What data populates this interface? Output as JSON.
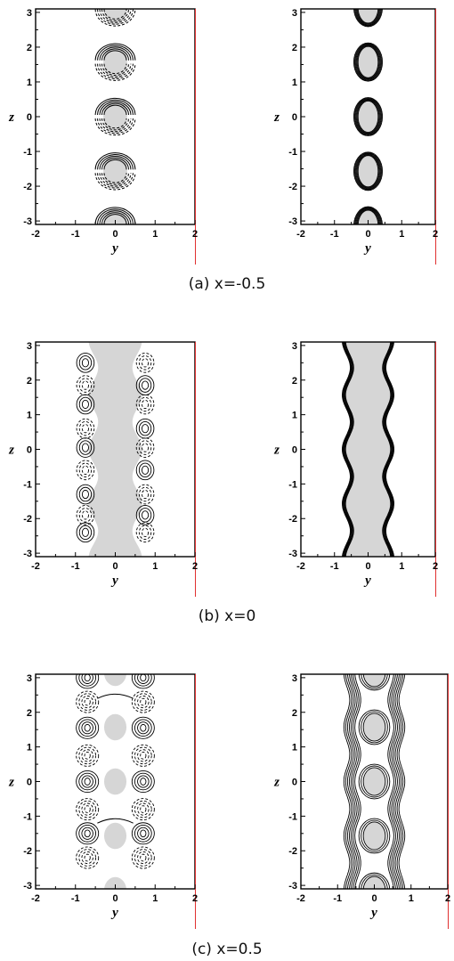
{
  "figure": {
    "rows": [
      {
        "caption": "(a)  x=-0.5",
        "panels": [
          {
            "ylabel": "z",
            "xlabel": "y",
            "xticks": [
              "-2",
              "-1",
              "0",
              "1",
              "2"
            ],
            "yticks": [
              "3",
              "2",
              "1",
              "0",
              "-1",
              "-2",
              "-3"
            ]
          },
          {
            "ylabel": "z",
            "xlabel": "y",
            "xticks": [
              "-2",
              "-1",
              "0",
              "1",
              "2"
            ],
            "yticks": [
              "3",
              "2",
              "1",
              "0",
              "-1",
              "-2",
              "-3"
            ]
          }
        ]
      },
      {
        "caption": "(b) x=0",
        "panels": [
          {
            "ylabel": "z",
            "xlabel": "y",
            "xticks": [
              "-2",
              "-1",
              "0",
              "1",
              "2"
            ],
            "yticks": [
              "3",
              "2",
              "1",
              "0",
              "-1",
              "-2",
              "-3"
            ]
          },
          {
            "ylabel": "z",
            "xlabel": "y",
            "xticks": [
              "-2",
              "-1",
              "0",
              "1",
              "2"
            ],
            "yticks": [
              "3",
              "2",
              "1",
              "0",
              "-1",
              "-2",
              "-3"
            ]
          }
        ]
      },
      {
        "caption": "(c) x=0.5",
        "panels": [
          {
            "ylabel": "z",
            "xlabel": "y",
            "xticks": [
              "-2",
              "-1",
              "0",
              "1",
              "2"
            ],
            "yticks": [
              "3",
              "2",
              "1",
              "0",
              "-1",
              "-2",
              "-3"
            ]
          },
          {
            "ylabel": "z",
            "xlabel": "y",
            "xticks": [
              "-2",
              "-1",
              "0",
              "1",
              "2"
            ],
            "yticks": [
              "3",
              "2",
              "1",
              "0",
              "-1",
              "-2",
              "-3"
            ]
          }
        ]
      }
    ],
    "axis_ranges": {
      "y": [
        -2,
        2
      ],
      "z": [
        -3.1,
        3.1
      ]
    },
    "colors": {
      "fill": "#d6d6d6",
      "line": "#000000",
      "edge_accent": "#e03030"
    }
  }
}
